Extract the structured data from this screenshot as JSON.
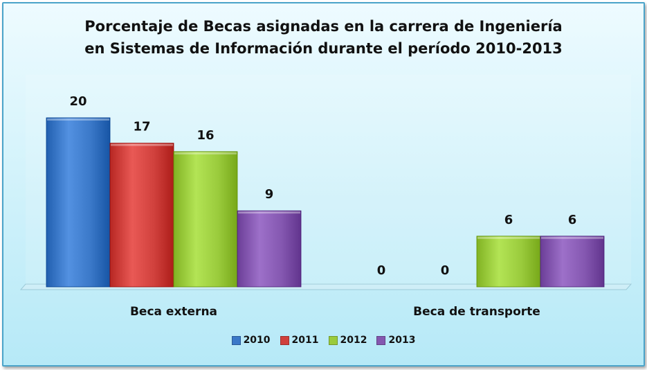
{
  "chart_data": {
    "type": "bar",
    "title_lines": [
      "Porcentaje de Becas asignadas en la carrera de Ingeniería",
      "en Sistemas de Información durante el período 2010-2013"
    ],
    "categories": [
      "Beca externa",
      "Beca de transporte"
    ],
    "series": [
      {
        "name": "2010",
        "values": [
          20,
          0
        ],
        "color": "#3a78c8"
      },
      {
        "name": "2011",
        "values": [
          17,
          0
        ],
        "color": "#d0403c"
      },
      {
        "name": "2012",
        "values": [
          16,
          6
        ],
        "color": "#9acb3c"
      },
      {
        "name": "2013",
        "values": [
          9,
          6
        ],
        "color": "#8457b0"
      }
    ],
    "ylim": [
      0,
      24
    ],
    "grid": false,
    "legend_position": "bottom"
  }
}
